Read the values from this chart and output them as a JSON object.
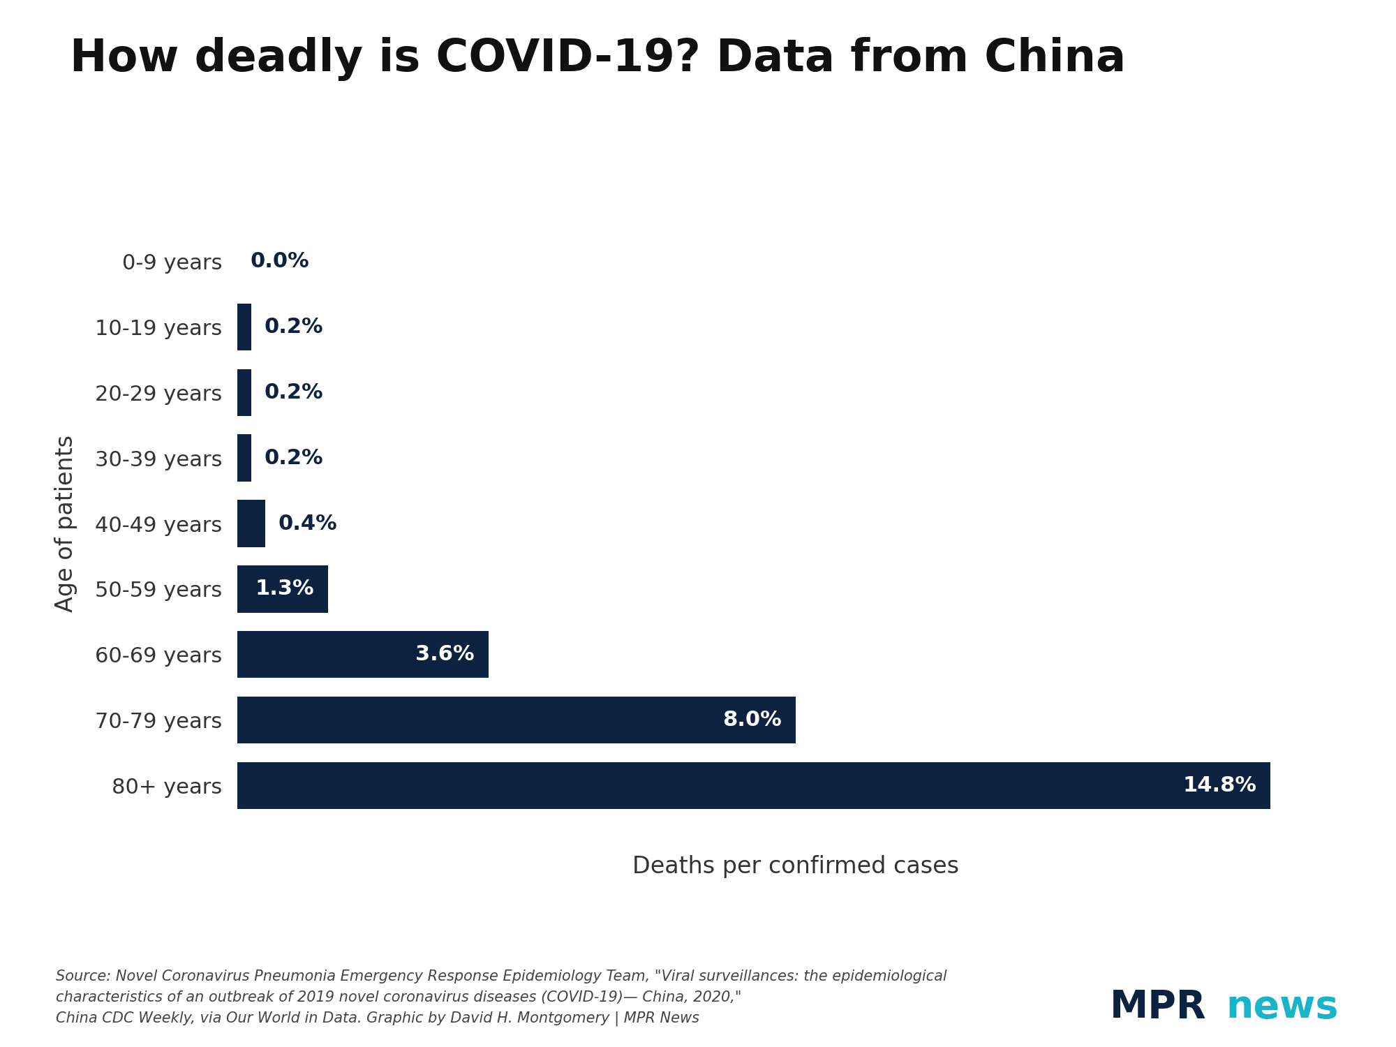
{
  "title": "How deadly is COVID-19? Data from China",
  "categories": [
    "0-9 years",
    "10-19 years",
    "20-29 years",
    "30-39 years",
    "40-49 years",
    "50-59 years",
    "60-69 years",
    "70-79 years",
    "80+ years"
  ],
  "values": [
    0.0,
    0.2,
    0.2,
    0.2,
    0.4,
    1.3,
    3.6,
    8.0,
    14.8
  ],
  "labels": [
    "0.0%",
    "0.2%",
    "0.2%",
    "0.2%",
    "0.4%",
    "1.3%",
    "3.6%",
    "8.0%",
    "14.8%"
  ],
  "bar_color": "#0d2240",
  "background_color": "#ffffff",
  "xlabel": "Deaths per confirmed cases",
  "ylabel": "Age of patients",
  "title_fontsize": 46,
  "axis_label_fontsize": 24,
  "tick_fontsize": 22,
  "bar_label_fontsize": 22,
  "source_text": "Source: Novel Coronavirus Pneumonia Emergency Response Epidemiology Team, \"Viral surveillances: the epidemiological\ncharacteristics of an outbreak of 2019 novel coronavirus diseases (COVID-19)— China, 2020,\"\nChina CDC Weekly, via Our World in Data. Graphic by David H. Montgomery | MPR News",
  "source_fontsize": 15,
  "mpr_text_mpr": "MPR",
  "mpr_text_news": "news",
  "mpr_color": "#0d2240",
  "news_color": "#18b4c8",
  "xlim": [
    0,
    16
  ],
  "label_threshold": 1.0,
  "bar_height": 0.72
}
